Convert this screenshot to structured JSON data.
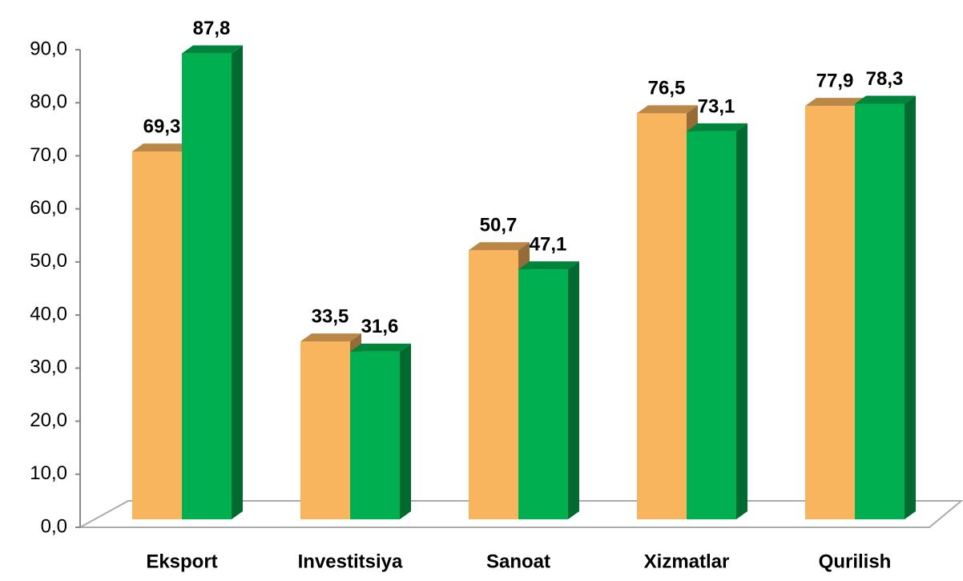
{
  "chart_data": {
    "type": "bar3d",
    "categories": [
      "Eksport",
      "Investitsiya",
      "Sanoat",
      "Xizmatlar",
      "Qurilish"
    ],
    "series": [
      {
        "color": "#F9B45E",
        "values": [
          69.3,
          33.5,
          50.7,
          76.5,
          77.9
        ],
        "value_labels": [
          "69,3",
          "33,5",
          "50,7",
          "76,5",
          "77,9"
        ]
      },
      {
        "color": "#00B050",
        "values": [
          87.8,
          31.6,
          47.1,
          73.1,
          78.3
        ],
        "value_labels": [
          "87,8",
          "31,6",
          "47,1",
          "73,1",
          "78,3"
        ]
      }
    ],
    "ylim": [
      0,
      90
    ],
    "yticks": [
      {
        "value": 0,
        "label": "0,0"
      },
      {
        "value": 10,
        "label": "10,0"
      },
      {
        "value": 20,
        "label": "20,0"
      },
      {
        "value": 30,
        "label": "30,0"
      },
      {
        "value": 40,
        "label": "40,0"
      },
      {
        "value": 50,
        "label": "50,0"
      },
      {
        "value": 60,
        "label": "60,0"
      },
      {
        "value": 70,
        "label": "70,0"
      },
      {
        "value": 80,
        "label": "80,0"
      },
      {
        "value": 90,
        "label": "90,0"
      }
    ]
  }
}
